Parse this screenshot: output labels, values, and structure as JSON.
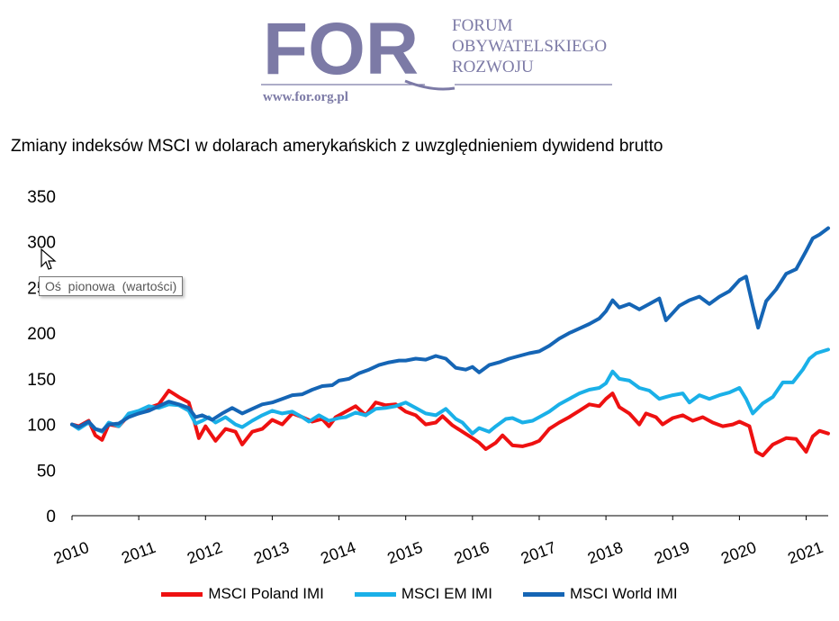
{
  "logo": {
    "mark": "FOR",
    "name_lines": [
      "FORUM",
      "OBYWATELSKIEGO",
      "ROZWOJU"
    ],
    "url": "www.for.org.pl",
    "color": "#7c7aa6"
  },
  "tooltip": {
    "text": "Oś  pionowa  (wartości)"
  },
  "chart_data": {
    "type": "line",
    "title": "Zmiany indeksów MSCI w dolarach amerykańskich z uwzględnieniem dywidend brutto",
    "xlabel": "",
    "ylabel": "",
    "ylim": [
      0,
      350
    ],
    "yticks": [
      0,
      50,
      100,
      150,
      200,
      250,
      300,
      350
    ],
    "xlim": [
      2010,
      2021.33
    ],
    "xticks": [
      "2010",
      "2011",
      "2012",
      "2013",
      "2014",
      "2015",
      "2016",
      "2017",
      "2018",
      "2019",
      "2020",
      "2021"
    ],
    "grid": false,
    "legend_position": "bottom",
    "series": [
      {
        "name": "MSCI Poland IMI",
        "color": "#ee1111",
        "points": [
          [
            2010.0,
            100
          ],
          [
            2010.1,
            98
          ],
          [
            2010.25,
            104
          ],
          [
            2010.35,
            88
          ],
          [
            2010.45,
            83
          ],
          [
            2010.55,
            100
          ],
          [
            2010.7,
            98
          ],
          [
            2010.85,
            110
          ],
          [
            2011.0,
            112
          ],
          [
            2011.15,
            118
          ],
          [
            2011.3,
            122
          ],
          [
            2011.45,
            137
          ],
          [
            2011.6,
            130
          ],
          [
            2011.75,
            124
          ],
          [
            2011.83,
            104
          ],
          [
            2011.9,
            85
          ],
          [
            2012.0,
            98
          ],
          [
            2012.15,
            82
          ],
          [
            2012.3,
            95
          ],
          [
            2012.45,
            92
          ],
          [
            2012.55,
            78
          ],
          [
            2012.7,
            92
          ],
          [
            2012.85,
            95
          ],
          [
            2013.0,
            105
          ],
          [
            2013.15,
            100
          ],
          [
            2013.3,
            112
          ],
          [
            2013.45,
            108
          ],
          [
            2013.6,
            103
          ],
          [
            2013.75,
            106
          ],
          [
            2013.85,
            98
          ],
          [
            2013.95,
            108
          ],
          [
            2014.1,
            114
          ],
          [
            2014.25,
            120
          ],
          [
            2014.4,
            110
          ],
          [
            2014.55,
            124
          ],
          [
            2014.7,
            121
          ],
          [
            2014.85,
            122
          ],
          [
            2015.0,
            114
          ],
          [
            2015.15,
            110
          ],
          [
            2015.3,
            100
          ],
          [
            2015.45,
            102
          ],
          [
            2015.55,
            109
          ],
          [
            2015.7,
            99
          ],
          [
            2015.85,
            92
          ],
          [
            2016.0,
            85
          ],
          [
            2016.1,
            80
          ],
          [
            2016.2,
            73
          ],
          [
            2016.35,
            80
          ],
          [
            2016.45,
            88
          ],
          [
            2016.6,
            77
          ],
          [
            2016.75,
            76
          ],
          [
            2016.9,
            79
          ],
          [
            2017.0,
            82
          ],
          [
            2017.15,
            95
          ],
          [
            2017.3,
            102
          ],
          [
            2017.45,
            108
          ],
          [
            2017.6,
            115
          ],
          [
            2017.75,
            122
          ],
          [
            2017.9,
            120
          ],
          [
            2018.0,
            128
          ],
          [
            2018.1,
            134
          ],
          [
            2018.2,
            119
          ],
          [
            2018.35,
            112
          ],
          [
            2018.5,
            100
          ],
          [
            2018.6,
            112
          ],
          [
            2018.75,
            108
          ],
          [
            2018.85,
            100
          ],
          [
            2019.0,
            107
          ],
          [
            2019.15,
            110
          ],
          [
            2019.3,
            104
          ],
          [
            2019.45,
            108
          ],
          [
            2019.6,
            102
          ],
          [
            2019.75,
            98
          ],
          [
            2019.9,
            100
          ],
          [
            2020.0,
            103
          ],
          [
            2020.15,
            98
          ],
          [
            2020.25,
            70
          ],
          [
            2020.35,
            66
          ],
          [
            2020.5,
            78
          ],
          [
            2020.7,
            85
          ],
          [
            2020.85,
            84
          ],
          [
            2021.0,
            70
          ],
          [
            2021.1,
            87
          ],
          [
            2021.2,
            93
          ],
          [
            2021.33,
            90
          ]
        ]
      },
      {
        "name": "MSCI EM IMI",
        "color": "#1ab0e8",
        "points": [
          [
            2010.0,
            100
          ],
          [
            2010.1,
            95
          ],
          [
            2010.25,
            102
          ],
          [
            2010.35,
            95
          ],
          [
            2010.45,
            92
          ],
          [
            2010.55,
            102
          ],
          [
            2010.7,
            98
          ],
          [
            2010.85,
            112
          ],
          [
            2011.0,
            115
          ],
          [
            2011.15,
            120
          ],
          [
            2011.3,
            118
          ],
          [
            2011.45,
            122
          ],
          [
            2011.6,
            121
          ],
          [
            2011.75,
            115
          ],
          [
            2011.85,
            101
          ],
          [
            2011.95,
            104
          ],
          [
            2012.05,
            108
          ],
          [
            2012.15,
            102
          ],
          [
            2012.3,
            108
          ],
          [
            2012.45,
            100
          ],
          [
            2012.55,
            97
          ],
          [
            2012.7,
            104
          ],
          [
            2012.85,
            110
          ],
          [
            2013.0,
            115
          ],
          [
            2013.15,
            112
          ],
          [
            2013.3,
            114
          ],
          [
            2013.45,
            108
          ],
          [
            2013.55,
            103
          ],
          [
            2013.7,
            110
          ],
          [
            2013.85,
            104
          ],
          [
            2014.0,
            107
          ],
          [
            2014.1,
            108
          ],
          [
            2014.25,
            113
          ],
          [
            2014.4,
            110
          ],
          [
            2014.55,
            117
          ],
          [
            2014.7,
            118
          ],
          [
            2014.85,
            120
          ],
          [
            2015.0,
            124
          ],
          [
            2015.15,
            118
          ],
          [
            2015.3,
            112
          ],
          [
            2015.45,
            110
          ],
          [
            2015.6,
            117
          ],
          [
            2015.75,
            106
          ],
          [
            2015.85,
            102
          ],
          [
            2016.0,
            90
          ],
          [
            2016.1,
            96
          ],
          [
            2016.25,
            92
          ],
          [
            2016.35,
            98
          ],
          [
            2016.5,
            106
          ],
          [
            2016.6,
            107
          ],
          [
            2016.75,
            102
          ],
          [
            2016.9,
            104
          ],
          [
            2017.0,
            108
          ],
          [
            2017.15,
            114
          ],
          [
            2017.3,
            122
          ],
          [
            2017.45,
            128
          ],
          [
            2017.6,
            134
          ],
          [
            2017.75,
            138
          ],
          [
            2017.9,
            140
          ],
          [
            2018.0,
            145
          ],
          [
            2018.1,
            158
          ],
          [
            2018.2,
            150
          ],
          [
            2018.35,
            148
          ],
          [
            2018.5,
            140
          ],
          [
            2018.65,
            137
          ],
          [
            2018.8,
            128
          ],
          [
            2018.9,
            130
          ],
          [
            2019.0,
            132
          ],
          [
            2019.15,
            134
          ],
          [
            2019.25,
            124
          ],
          [
            2019.4,
            132
          ],
          [
            2019.55,
            128
          ],
          [
            2019.7,
            132
          ],
          [
            2019.85,
            135
          ],
          [
            2020.0,
            140
          ],
          [
            2020.1,
            128
          ],
          [
            2020.2,
            112
          ],
          [
            2020.35,
            123
          ],
          [
            2020.5,
            130
          ],
          [
            2020.65,
            146
          ],
          [
            2020.8,
            146
          ],
          [
            2020.95,
            160
          ],
          [
            2021.05,
            172
          ],
          [
            2021.15,
            178
          ],
          [
            2021.33,
            182
          ]
        ]
      },
      {
        "name": "MSCI World IMI",
        "color": "#1565b5",
        "points": [
          [
            2010.0,
            100
          ],
          [
            2010.1,
            97
          ],
          [
            2010.25,
            103
          ],
          [
            2010.35,
            95
          ],
          [
            2010.45,
            93
          ],
          [
            2010.55,
            100
          ],
          [
            2010.7,
            101
          ],
          [
            2010.85,
            108
          ],
          [
            2011.0,
            112
          ],
          [
            2011.15,
            115
          ],
          [
            2011.3,
            120
          ],
          [
            2011.45,
            125
          ],
          [
            2011.6,
            122
          ],
          [
            2011.75,
            118
          ],
          [
            2011.85,
            108
          ],
          [
            2011.95,
            110
          ],
          [
            2012.1,
            105
          ],
          [
            2012.25,
            112
          ],
          [
            2012.4,
            118
          ],
          [
            2012.55,
            112
          ],
          [
            2012.7,
            117
          ],
          [
            2012.85,
            122
          ],
          [
            2013.0,
            124
          ],
          [
            2013.15,
            128
          ],
          [
            2013.3,
            132
          ],
          [
            2013.45,
            133
          ],
          [
            2013.6,
            138
          ],
          [
            2013.75,
            142
          ],
          [
            2013.9,
            143
          ],
          [
            2014.0,
            148
          ],
          [
            2014.15,
            150
          ],
          [
            2014.3,
            156
          ],
          [
            2014.45,
            160
          ],
          [
            2014.6,
            165
          ],
          [
            2014.75,
            168
          ],
          [
            2014.9,
            170
          ],
          [
            2015.0,
            170
          ],
          [
            2015.15,
            172
          ],
          [
            2015.3,
            171
          ],
          [
            2015.45,
            175
          ],
          [
            2015.6,
            172
          ],
          [
            2015.75,
            162
          ],
          [
            2015.9,
            160
          ],
          [
            2016.0,
            163
          ],
          [
            2016.1,
            157
          ],
          [
            2016.25,
            165
          ],
          [
            2016.4,
            168
          ],
          [
            2016.55,
            172
          ],
          [
            2016.7,
            175
          ],
          [
            2016.85,
            178
          ],
          [
            2017.0,
            180
          ],
          [
            2017.15,
            186
          ],
          [
            2017.3,
            194
          ],
          [
            2017.45,
            200
          ],
          [
            2017.6,
            205
          ],
          [
            2017.75,
            210
          ],
          [
            2017.9,
            216
          ],
          [
            2018.0,
            224
          ],
          [
            2018.1,
            236
          ],
          [
            2018.2,
            228
          ],
          [
            2018.35,
            232
          ],
          [
            2018.5,
            226
          ],
          [
            2018.65,
            232
          ],
          [
            2018.8,
            238
          ],
          [
            2018.9,
            214
          ],
          [
            2019.0,
            222
          ],
          [
            2019.1,
            230
          ],
          [
            2019.25,
            236
          ],
          [
            2019.4,
            240
          ],
          [
            2019.55,
            232
          ],
          [
            2019.7,
            240
          ],
          [
            2019.85,
            246
          ],
          [
            2020.0,
            258
          ],
          [
            2020.1,
            262
          ],
          [
            2020.2,
            230
          ],
          [
            2020.28,
            206
          ],
          [
            2020.4,
            235
          ],
          [
            2020.55,
            248
          ],
          [
            2020.7,
            265
          ],
          [
            2020.85,
            270
          ],
          [
            2021.0,
            290
          ],
          [
            2021.1,
            304
          ],
          [
            2021.2,
            308
          ],
          [
            2021.33,
            315
          ]
        ]
      }
    ]
  }
}
